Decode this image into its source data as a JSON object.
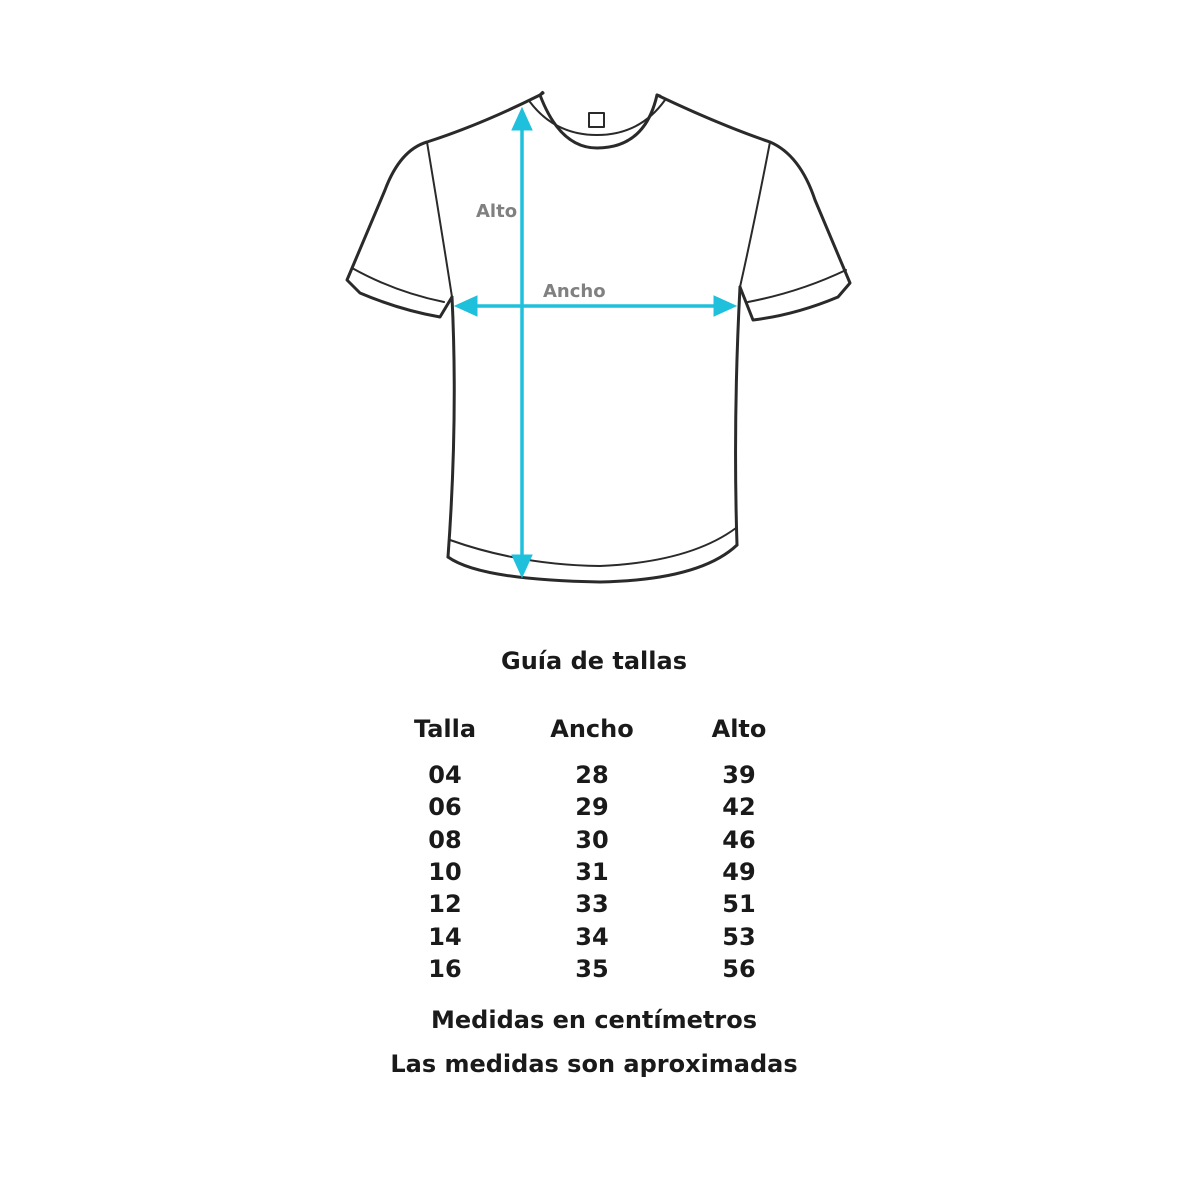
{
  "diagram": {
    "height_label": "Alto",
    "width_label": "Ancho",
    "arrow_color": "#1ec0dc",
    "outline_color": "#2a2a2a"
  },
  "guide": {
    "title": "Guía de tallas",
    "headers": [
      "Talla",
      "Ancho",
      "Alto"
    ],
    "rows": [
      [
        "04",
        "28",
        "39"
      ],
      [
        "06",
        "29",
        "42"
      ],
      [
        "08",
        "30",
        "46"
      ],
      [
        "10",
        "31",
        "49"
      ],
      [
        "12",
        "33",
        "51"
      ],
      [
        "14",
        "34",
        "53"
      ],
      [
        "16",
        "35",
        "56"
      ]
    ],
    "note_units": "Medidas en centímetros",
    "note_approx": "Las medidas son aproximadas"
  }
}
